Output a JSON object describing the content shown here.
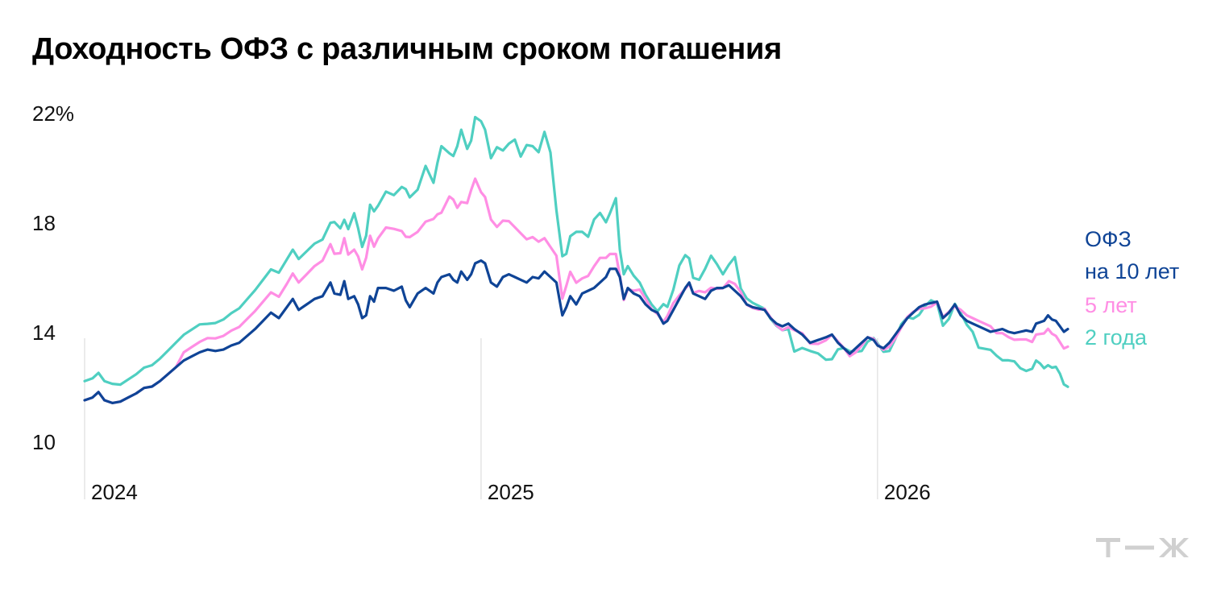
{
  "title": "Доходность ОФЗ с различным сроком погашения",
  "logo": "Т—Ж",
  "colors": {
    "ofz10": "#0f4496",
    "ofz5": "#ff8ee4",
    "ofz2": "#4fcfc1",
    "grid": "#d7d7d7",
    "logo": "#d0d0d0"
  },
  "chart_data": {
    "type": "line",
    "title": "Доходность ОФЗ с различным сроком погашения",
    "xlabel": "",
    "ylabel": "",
    "y_ticks": [
      "22%",
      "18",
      "14",
      "10"
    ],
    "y_tick_values": [
      22,
      18,
      14,
      10
    ],
    "x_ticks": [
      "2024",
      "2025",
      "2026"
    ],
    "x_tick_values": [
      2024,
      2025,
      2026
    ],
    "xlim": [
      2024.0,
      2026.48
    ],
    "ylim": [
      8.3,
      22
    ],
    "grid": "vertical lines at year starts",
    "legend_placement": "right",
    "series": [
      {
        "name": "ОФЗ\nна 10 лет",
        "color": "#0f4496",
        "points": [
          [
            2024.0,
            11.5
          ],
          [
            2024.02,
            11.6
          ],
          [
            2024.035,
            11.8
          ],
          [
            2024.05,
            11.5
          ],
          [
            2024.07,
            11.4
          ],
          [
            2024.09,
            11.45
          ],
          [
            2024.11,
            11.6
          ],
          [
            2024.13,
            11.75
          ],
          [
            2024.15,
            11.95
          ],
          [
            2024.17,
            12.0
          ],
          [
            2024.19,
            12.2
          ],
          [
            2024.21,
            12.45
          ],
          [
            2024.23,
            12.7
          ],
          [
            2024.25,
            12.95
          ],
          [
            2024.27,
            13.1
          ],
          [
            2024.29,
            13.25
          ],
          [
            2024.31,
            13.35
          ],
          [
            2024.33,
            13.3
          ],
          [
            2024.35,
            13.35
          ],
          [
            2024.37,
            13.5
          ],
          [
            2024.39,
            13.6
          ],
          [
            2024.41,
            13.85
          ],
          [
            2024.43,
            14.1
          ],
          [
            2024.45,
            14.4
          ],
          [
            2024.47,
            14.7
          ],
          [
            2024.49,
            14.5
          ],
          [
            2024.51,
            14.9
          ],
          [
            2024.525,
            15.2
          ],
          [
            2024.54,
            14.8
          ],
          [
            2024.56,
            15.0
          ],
          [
            2024.58,
            15.2
          ],
          [
            2024.6,
            15.3
          ],
          [
            2024.62,
            15.8
          ],
          [
            2024.63,
            15.4
          ],
          [
            2024.645,
            15.35
          ],
          [
            2024.655,
            15.85
          ],
          [
            2024.665,
            15.2
          ],
          [
            2024.68,
            15.3
          ],
          [
            2024.69,
            15.0
          ],
          [
            2024.7,
            14.5
          ],
          [
            2024.71,
            14.6
          ],
          [
            2024.72,
            15.3
          ],
          [
            2024.73,
            15.1
          ],
          [
            2024.74,
            15.6
          ],
          [
            2024.76,
            15.6
          ],
          [
            2024.78,
            15.5
          ],
          [
            2024.8,
            15.65
          ],
          [
            2024.81,
            15.15
          ],
          [
            2024.82,
            14.9
          ],
          [
            2024.84,
            15.4
          ],
          [
            2024.86,
            15.6
          ],
          [
            2024.88,
            15.4
          ],
          [
            2024.89,
            15.8
          ],
          [
            2024.9,
            16.0
          ],
          [
            2024.92,
            16.1
          ],
          [
            2024.93,
            15.9
          ],
          [
            2024.94,
            15.8
          ],
          [
            2024.95,
            16.2
          ],
          [
            2024.965,
            15.9
          ],
          [
            2024.975,
            16.1
          ],
          [
            2024.985,
            16.5
          ],
          [
            2025.0,
            16.6
          ],
          [
            2025.01,
            16.5
          ],
          [
            2025.025,
            15.8
          ],
          [
            2025.04,
            15.65
          ],
          [
            2025.055,
            16.0
          ],
          [
            2025.07,
            16.1
          ],
          [
            2025.085,
            16.0
          ],
          [
            2025.1,
            15.9
          ],
          [
            2025.115,
            15.8
          ],
          [
            2025.13,
            16.0
          ],
          [
            2025.145,
            15.95
          ],
          [
            2025.16,
            16.2
          ],
          [
            2025.175,
            16.0
          ],
          [
            2025.19,
            15.8
          ],
          [
            2025.205,
            14.6
          ],
          [
            2025.215,
            14.9
          ],
          [
            2025.225,
            15.3
          ],
          [
            2025.24,
            15.0
          ],
          [
            2025.255,
            15.4
          ],
          [
            2025.27,
            15.5
          ],
          [
            2025.285,
            15.6
          ],
          [
            2025.3,
            15.8
          ],
          [
            2025.315,
            16.0
          ],
          [
            2025.325,
            16.3
          ],
          [
            2025.34,
            16.3
          ],
          [
            2025.35,
            16.0
          ],
          [
            2025.36,
            15.2
          ],
          [
            2025.37,
            15.6
          ],
          [
            2025.385,
            15.4
          ],
          [
            2025.4,
            15.3
          ],
          [
            2025.415,
            15.0
          ],
          [
            2025.43,
            14.8
          ],
          [
            2025.445,
            14.7
          ],
          [
            2025.46,
            14.3
          ],
          [
            2025.47,
            14.4
          ],
          [
            2025.485,
            14.8
          ],
          [
            2025.5,
            15.2
          ],
          [
            2025.515,
            15.6
          ],
          [
            2025.525,
            15.8
          ],
          [
            2025.535,
            15.4
          ],
          [
            2025.55,
            15.3
          ],
          [
            2025.565,
            15.2
          ],
          [
            2025.58,
            15.5
          ],
          [
            2025.595,
            15.6
          ],
          [
            2025.61,
            15.6
          ],
          [
            2025.625,
            15.7
          ],
          [
            2025.64,
            15.5
          ],
          [
            2025.655,
            15.3
          ],
          [
            2025.67,
            15.0
          ],
          [
            2025.685,
            14.9
          ],
          [
            2025.7,
            14.85
          ],
          [
            2025.715,
            14.8
          ],
          [
            2025.73,
            14.5
          ],
          [
            2025.745,
            14.3
          ],
          [
            2025.76,
            14.2
          ],
          [
            2025.775,
            14.3
          ],
          [
            2025.79,
            14.1
          ],
          [
            2025.81,
            13.9
          ],
          [
            2025.83,
            13.6
          ],
          [
            2025.85,
            13.7
          ],
          [
            2025.87,
            13.8
          ],
          [
            2025.885,
            13.9
          ],
          [
            2025.9,
            13.6
          ],
          [
            2025.915,
            13.4
          ],
          [
            2025.93,
            13.2
          ],
          [
            2025.945,
            13.4
          ],
          [
            2025.96,
            13.6
          ],
          [
            2025.975,
            13.8
          ],
          [
            2025.99,
            13.7
          ],
          [
            2026.0,
            13.5
          ],
          [
            2026.015,
            13.4
          ],
          [
            2026.03,
            13.6
          ],
          [
            2026.045,
            13.9
          ],
          [
            2026.06,
            14.2
          ],
          [
            2026.075,
            14.5
          ],
          [
            2026.09,
            14.7
          ],
          [
            2026.105,
            14.9
          ],
          [
            2026.12,
            15.0
          ],
          [
            2026.135,
            15.05
          ],
          [
            2026.15,
            15.1
          ],
          [
            2026.165,
            14.5
          ],
          [
            2026.18,
            14.7
          ],
          [
            2026.195,
            15.0
          ],
          [
            2026.21,
            14.6
          ],
          [
            2026.225,
            14.4
          ],
          [
            2026.24,
            14.3
          ],
          [
            2026.255,
            14.2
          ],
          [
            2026.27,
            14.1
          ],
          [
            2026.285,
            14.0
          ],
          [
            2026.3,
            14.05
          ],
          [
            2026.315,
            14.1
          ],
          [
            2026.33,
            14.0
          ],
          [
            2026.345,
            13.95
          ],
          [
            2026.36,
            14.0
          ],
          [
            2026.375,
            14.05
          ],
          [
            2026.39,
            14.0
          ],
          [
            2026.4,
            14.3
          ],
          [
            2026.41,
            14.35
          ],
          [
            2026.42,
            14.4
          ],
          [
            2026.43,
            14.6
          ],
          [
            2026.44,
            14.45
          ],
          [
            2026.45,
            14.4
          ],
          [
            2026.46,
            14.2
          ],
          [
            2026.47,
            14.0
          ],
          [
            2026.48,
            14.1
          ]
        ]
      },
      {
        "name": "5 лет",
        "color": "#ff8ee4",
        "points": []
      },
      {
        "name": "2 года",
        "color": "#4fcfc1",
        "points": []
      }
    ]
  }
}
